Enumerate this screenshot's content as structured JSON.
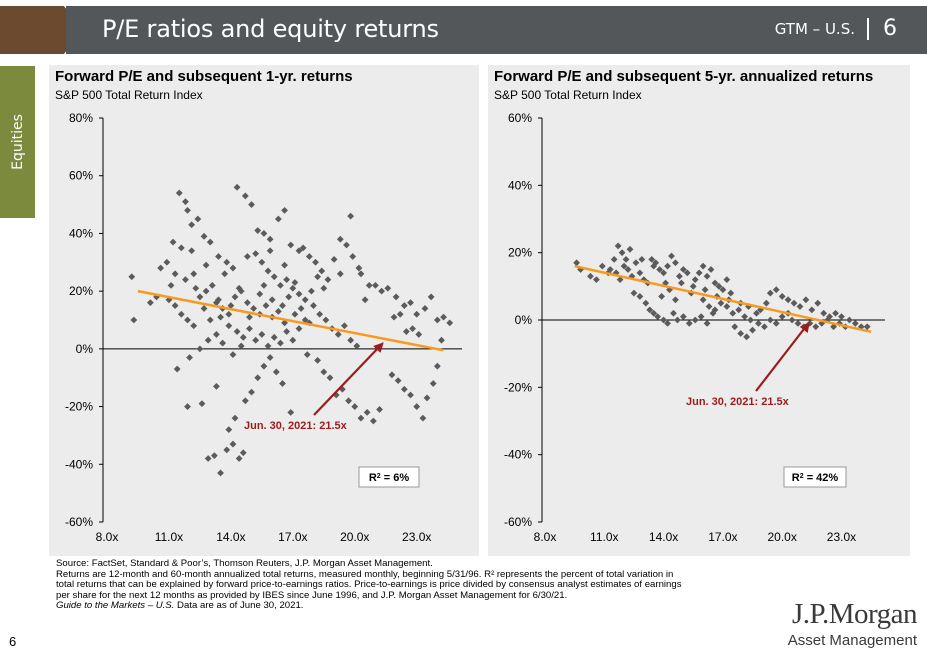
{
  "header": {
    "title": "P/E ratios and equity returns",
    "section_code": "GTM – U.S.",
    "page": "6"
  },
  "side_tab": {
    "label": "Equities"
  },
  "colors": {
    "header_bg": "#54575a",
    "arrow": "#6b4a30",
    "tab_bg": "#7b8a3d",
    "trend": "#f79a1e",
    "marker": "#5b5b5b",
    "annotation": "#9b1c1c"
  },
  "chart_data": [
    {
      "type": "scatter",
      "title": "Forward P/E and subsequent 1-yr. returns",
      "subtitle": "S&P 500 Total Return Index",
      "x_ticks": [
        "8.0x",
        "11.0x",
        "14.0x",
        "17.0x",
        "20.0x",
        "23.0x"
      ],
      "y_ticks": [
        "80%",
        "60%",
        "40%",
        "20%",
        "0%",
        "-20%",
        "-40%",
        "-60%"
      ],
      "xlim": [
        8,
        25
      ],
      "ylim": [
        -60,
        80
      ],
      "trend_line": [
        [
          9.5,
          20
        ],
        [
          24.3,
          -0.5
        ]
      ],
      "annotation": {
        "text": "Jun. 30, 2021: 21.5x",
        "point": [
          21.5,
          3
        ]
      },
      "r2_label": "R",
      "r2_value": "6%",
      "points": [
        [
          9.2,
          25
        ],
        [
          9.3,
          10
        ],
        [
          10.6,
          28
        ],
        [
          10.9,
          30
        ],
        [
          11.2,
          37
        ],
        [
          11.6,
          35
        ],
        [
          11.1,
          22
        ],
        [
          11.3,
          26
        ],
        [
          11.8,
          24
        ],
        [
          12.2,
          26
        ],
        [
          11.5,
          54
        ],
        [
          11.8,
          51
        ],
        [
          11.9,
          48
        ],
        [
          12.1,
          43
        ],
        [
          12.4,
          45
        ],
        [
          12.7,
          39
        ],
        [
          13.0,
          37
        ],
        [
          13.4,
          32
        ],
        [
          13.8,
          30
        ],
        [
          14.1,
          28
        ],
        [
          11.0,
          17
        ],
        [
          11.3,
          15
        ],
        [
          11.6,
          12
        ],
        [
          11.9,
          10
        ],
        [
          12.2,
          8
        ],
        [
          12.5,
          18
        ],
        [
          12.8,
          20
        ],
        [
          13.1,
          22
        ],
        [
          13.3,
          16
        ],
        [
          13.6,
          14
        ],
        [
          13.9,
          12
        ],
        [
          14.2,
          18
        ],
        [
          14.5,
          20
        ],
        [
          14.8,
          16
        ],
        [
          15.1,
          14
        ],
        [
          15.4,
          12
        ],
        [
          15.7,
          15
        ],
        [
          16.0,
          11
        ],
        [
          16.3,
          13
        ],
        [
          16.6,
          9
        ],
        [
          11.4,
          -7
        ],
        [
          12.0,
          -3
        ],
        [
          12.5,
          0
        ],
        [
          12.9,
          3
        ],
        [
          13.3,
          5
        ],
        [
          13.6,
          2
        ],
        [
          13.0,
          10
        ],
        [
          13.9,
          8
        ],
        [
          14.3,
          6
        ],
        [
          14.6,
          4
        ],
        [
          14.9,
          7
        ],
        [
          15.2,
          3
        ],
        [
          15.5,
          5
        ],
        [
          15.8,
          1
        ],
        [
          16.1,
          4
        ],
        [
          16.4,
          2
        ],
        [
          16.7,
          6
        ],
        [
          17.0,
          3
        ],
        [
          17.3,
          7
        ],
        [
          17.6,
          10
        ],
        [
          11.9,
          -20
        ],
        [
          12.6,
          -19
        ],
        [
          13.3,
          -13
        ],
        [
          12.9,
          -38
        ],
        [
          13.2,
          -37
        ],
        [
          13.5,
          -43
        ],
        [
          13.8,
          -35
        ],
        [
          14.1,
          -33
        ],
        [
          14.4,
          -38
        ],
        [
          14.6,
          -36
        ],
        [
          13.9,
          -28
        ],
        [
          14.2,
          -24
        ],
        [
          14.7,
          -18
        ],
        [
          15.0,
          -15
        ],
        [
          15.3,
          -10
        ],
        [
          15.6,
          -6
        ],
        [
          15.9,
          -3
        ],
        [
          16.2,
          -8
        ],
        [
          16.5,
          -12
        ],
        [
          16.9,
          -22
        ],
        [
          14.3,
          56
        ],
        [
          14.7,
          53
        ],
        [
          15.0,
          50
        ],
        [
          15.3,
          41
        ],
        [
          15.6,
          40
        ],
        [
          15.9,
          38
        ],
        [
          16.3,
          45
        ],
        [
          16.6,
          48
        ],
        [
          16.9,
          36
        ],
        [
          17.3,
          34
        ],
        [
          15.2,
          33
        ],
        [
          15.5,
          30
        ],
        [
          15.8,
          27
        ],
        [
          16.1,
          25
        ],
        [
          16.4,
          22
        ],
        [
          16.7,
          24
        ],
        [
          17.0,
          21
        ],
        [
          17.3,
          19
        ],
        [
          17.6,
          17
        ],
        [
          17.9,
          20
        ],
        [
          17.5,
          35
        ],
        [
          17.8,
          32
        ],
        [
          18.1,
          30
        ],
        [
          18.4,
          27
        ],
        [
          18.7,
          24
        ],
        [
          19.0,
          31
        ],
        [
          19.3,
          38
        ],
        [
          19.6,
          36
        ],
        [
          19.9,
          32
        ],
        [
          20.2,
          28
        ],
        [
          18.0,
          15
        ],
        [
          18.3,
          12
        ],
        [
          18.6,
          10
        ],
        [
          18.9,
          7
        ],
        [
          19.2,
          5
        ],
        [
          19.5,
          8
        ],
        [
          19.8,
          3
        ],
        [
          20.1,
          1
        ],
        [
          17.7,
          -2
        ],
        [
          18.2,
          -4
        ],
        [
          18.5,
          -8
        ],
        [
          18.8,
          -10
        ],
        [
          19.1,
          -16
        ],
        [
          19.4,
          -14
        ],
        [
          19.7,
          -18
        ],
        [
          20.0,
          -20
        ],
        [
          20.3,
          -24
        ],
        [
          20.6,
          -22
        ],
        [
          20.9,
          -25
        ],
        [
          21.2,
          -21
        ],
        [
          19.8,
          46
        ],
        [
          20.3,
          26
        ],
        [
          20.7,
          22
        ],
        [
          21.0,
          22
        ],
        [
          21.3,
          20
        ],
        [
          21.6,
          21
        ],
        [
          22.0,
          18
        ],
        [
          22.4,
          15
        ],
        [
          22.7,
          16
        ],
        [
          23.0,
          12
        ],
        [
          21.8,
          -9
        ],
        [
          22.1,
          -11
        ],
        [
          22.4,
          -14
        ],
        [
          22.7,
          -16
        ],
        [
          23.0,
          -20
        ],
        [
          23.3,
          -24
        ],
        [
          23.5,
          -17
        ],
        [
          23.8,
          -12
        ],
        [
          24.0,
          -6
        ],
        [
          24.2,
          3
        ],
        [
          23.4,
          14
        ],
        [
          23.7,
          18
        ],
        [
          24.0,
          10
        ],
        [
          24.3,
          11
        ],
        [
          24.6,
          9
        ],
        [
          23.1,
          5
        ],
        [
          22.8,
          7
        ],
        [
          22.5,
          6
        ],
        [
          22.2,
          12
        ],
        [
          21.9,
          11
        ],
        [
          10.1,
          16
        ],
        [
          10.4,
          18
        ],
        [
          12.3,
          21
        ],
        [
          12.7,
          14
        ],
        [
          13.4,
          17
        ],
        [
          14.0,
          15
        ],
        [
          14.4,
          21
        ],
        [
          15.6,
          22
        ],
        [
          16.8,
          18
        ],
        [
          17.4,
          14
        ],
        [
          13.5,
          11
        ],
        [
          14.1,
          -2
        ],
        [
          14.5,
          1
        ],
        [
          14.9,
          11
        ],
        [
          15.4,
          19
        ],
        [
          16.0,
          17
        ],
        [
          16.5,
          15
        ],
        [
          17.1,
          12
        ],
        [
          17.8,
          9
        ],
        [
          18.5,
          21
        ],
        [
          12.1,
          34
        ],
        [
          12.8,
          29
        ],
        [
          13.7,
          26
        ],
        [
          14.8,
          32
        ],
        [
          15.9,
          34
        ],
        [
          16.6,
          29
        ],
        [
          17.1,
          23
        ],
        [
          18.2,
          25
        ],
        [
          19.3,
          26
        ],
        [
          20.5,
          17
        ]
      ]
    },
    {
      "type": "scatter",
      "title": "Forward P/E and subsequent 5-yr. annualized returns",
      "subtitle": "S&P 500 Total Return Index",
      "x_ticks": [
        "8.0x",
        "11.0x",
        "14.0x",
        "17.0x",
        "20.0x",
        "23.0x"
      ],
      "y_ticks": [
        "60%",
        "40%",
        "20%",
        "0%",
        "-20%",
        "-40%",
        "-60%"
      ],
      "xlim": [
        8,
        25
      ],
      "ylim": [
        -60,
        60
      ],
      "trend_line": [
        [
          9.5,
          16
        ],
        [
          24.5,
          -3.5
        ]
      ],
      "annotation": {
        "text": "Jun. 30, 2021: 21.5x",
        "point": [
          21.5,
          0
        ]
      },
      "r2_label": "R",
      "r2_value": "42%",
      "points": [
        [
          9.6,
          17
        ],
        [
          9.8,
          15
        ],
        [
          10.6,
          12
        ],
        [
          10.9,
          16
        ],
        [
          11.2,
          14
        ],
        [
          11.5,
          18
        ],
        [
          11.7,
          22
        ],
        [
          11.9,
          20
        ],
        [
          12.1,
          18
        ],
        [
          12.3,
          21
        ],
        [
          11.3,
          15
        ],
        [
          11.6,
          14
        ],
        [
          11.8,
          12
        ],
        [
          12.0,
          16
        ],
        [
          12.2,
          15
        ],
        [
          12.4,
          13
        ],
        [
          12.6,
          17
        ],
        [
          12.8,
          14
        ],
        [
          13.0,
          12
        ],
        [
          13.2,
          11
        ],
        [
          13.4,
          18
        ],
        [
          13.6,
          17
        ],
        [
          13.8,
          15
        ],
        [
          14.0,
          14
        ],
        [
          14.2,
          16
        ],
        [
          14.4,
          19
        ],
        [
          14.6,
          17
        ],
        [
          14.8,
          13
        ],
        [
          15.0,
          15
        ],
        [
          15.2,
          14
        ],
        [
          12.5,
          8
        ],
        [
          12.8,
          7
        ],
        [
          13.1,
          5
        ],
        [
          13.3,
          3
        ],
        [
          13.5,
          2
        ],
        [
          13.7,
          1
        ],
        [
          14.0,
          0
        ],
        [
          14.2,
          -1
        ],
        [
          14.5,
          2
        ],
        [
          14.7,
          0
        ],
        [
          15.0,
          1
        ],
        [
          15.3,
          -1
        ],
        [
          15.6,
          0
        ],
        [
          15.9,
          1
        ],
        [
          16.2,
          -1
        ],
        [
          16.5,
          2
        ],
        [
          13.9,
          7
        ],
        [
          14.3,
          9
        ],
        [
          14.6,
          6
        ],
        [
          15.4,
          8
        ],
        [
          15.6,
          12
        ],
        [
          15.8,
          14
        ],
        [
          16.0,
          16
        ],
        [
          16.2,
          13
        ],
        [
          16.4,
          15
        ],
        [
          16.6,
          11
        ],
        [
          16.8,
          10
        ],
        [
          17.0,
          9
        ],
        [
          17.2,
          12
        ],
        [
          17.4,
          8
        ],
        [
          16.0,
          6
        ],
        [
          16.3,
          4
        ],
        [
          16.6,
          3
        ],
        [
          16.9,
          5
        ],
        [
          17.2,
          4
        ],
        [
          17.5,
          2
        ],
        [
          17.8,
          3
        ],
        [
          18.1,
          1
        ],
        [
          18.4,
          0
        ],
        [
          18.7,
          2
        ],
        [
          17.6,
          -2
        ],
        [
          17.9,
          -4
        ],
        [
          18.2,
          -5
        ],
        [
          18.5,
          -3
        ],
        [
          18.8,
          -1
        ],
        [
          19.1,
          -2
        ],
        [
          19.4,
          0
        ],
        [
          19.7,
          -1
        ],
        [
          20.0,
          1
        ],
        [
          20.3,
          2
        ],
        [
          19.4,
          8
        ],
        [
          19.7,
          9
        ],
        [
          20.0,
          7
        ],
        [
          20.3,
          6
        ],
        [
          20.6,
          5
        ],
        [
          20.9,
          4
        ],
        [
          21.2,
          6
        ],
        [
          21.5,
          3
        ],
        [
          21.8,
          5
        ],
        [
          22.1,
          2
        ],
        [
          20.5,
          0
        ],
        [
          20.8,
          -1
        ],
        [
          21.1,
          -2
        ],
        [
          21.4,
          -1
        ],
        [
          21.7,
          -2
        ],
        [
          22.0,
          -1
        ],
        [
          22.3,
          0
        ],
        [
          22.6,
          -2
        ],
        [
          22.9,
          -1
        ],
        [
          23.2,
          -2
        ],
        [
          23.4,
          0
        ],
        [
          23.7,
          -1
        ],
        [
          24.0,
          -2
        ],
        [
          24.3,
          -2
        ],
        [
          23.0,
          1
        ],
        [
          22.7,
          2
        ],
        [
          22.4,
          1
        ],
        [
          10.3,
          13
        ],
        [
          12.9,
          18
        ],
        [
          13.5,
          16
        ],
        [
          14.1,
          11
        ],
        [
          14.9,
          11
        ],
        [
          15.5,
          10
        ],
        [
          16.1,
          9
        ],
        [
          16.7,
          7
        ],
        [
          17.3,
          6
        ],
        [
          17.9,
          5
        ],
        [
          18.3,
          4
        ],
        [
          18.9,
          3
        ],
        [
          19.2,
          5
        ]
      ]
    }
  ],
  "footnotes": [
    "Source: FactSet, Standard & Poor’s, Thomson Reuters, J.P. Morgan Asset Management.",
    "Returns are 12-month and 60-month annualized total returns, measured monthly, beginning 5/31/96. R² represents the percent of total variation in",
    "total returns that can be explained by forward price-to-earnings ratios. Price-to-earnings is price divided by consensus analyst estimates of earnings",
    "per share for the next 12 months as provided by IBES since June 1996, and J.P. Morgan Asset Management for 6/30/21."
  ],
  "footnote_guide_italic": "Guide to the Markets – U.S.",
  "footnote_guide_rest": " Data are as of June 30, 2021.",
  "logo": {
    "line1": "J.P.Morgan",
    "line2": "Asset Management"
  },
  "page_footer": "6"
}
